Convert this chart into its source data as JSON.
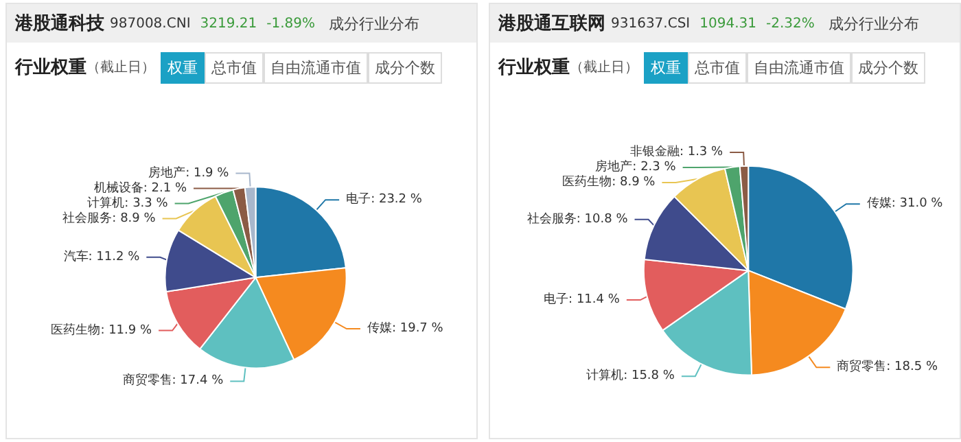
{
  "chart_data": [
    {
      "type": "pie",
      "title": "港股通科技",
      "subtitle": "987008.CNI",
      "annotations": [
        "3219.21",
        "-1.89%",
        "成分行业分布",
        "行业权重",
        "（截止日）",
        "权重",
        "总市值",
        "自由流通市值",
        "成分个数"
      ],
      "categories": [
        "电子",
        "传媒",
        "商贸零售",
        "医药生物",
        "汽车",
        "社会服务",
        "计算机",
        "机械设备",
        "房地产"
      ],
      "values": [
        23.2,
        19.7,
        17.4,
        11.9,
        11.2,
        8.9,
        3.3,
        2.1,
        1.9
      ],
      "value_labels": [
        "23.2 %",
        "19.7 %",
        "17.4 %",
        "11.9 %",
        "11.2 %",
        "8.9 %",
        "3.3 %",
        "2.1 %",
        "1.9 %"
      ],
      "colors": [
        "#1f77a8",
        "#f58a1f",
        "#5ec0c0",
        "#e25d5d",
        "#3f4b8c",
        "#e8c552",
        "#4ea46c",
        "#8b5b45",
        "#a8b7cc"
      ]
    },
    {
      "type": "pie",
      "title": "港股通互联网",
      "subtitle": "931637.CSI",
      "annotations": [
        "1094.31",
        "-2.32%",
        "成分行业分布",
        "行业权重",
        "（截止日）",
        "权重",
        "总市值",
        "自由流通市值",
        "成分个数"
      ],
      "categories": [
        "传媒",
        "商贸零售",
        "计算机",
        "电子",
        "社会服务",
        "医药生物",
        "房地产",
        "非银金融"
      ],
      "values": [
        31.0,
        18.5,
        15.8,
        11.4,
        10.8,
        8.9,
        2.3,
        1.3
      ],
      "value_labels": [
        "31.0 %",
        "18.5 %",
        "15.8 %",
        "11.4 %",
        "10.8 %",
        "8.9 %",
        "2.3 %",
        "1.3 %"
      ],
      "colors": [
        "#1f77a8",
        "#f58a1f",
        "#5ec0c0",
        "#e25d5d",
        "#3f4b8c",
        "#e8c552",
        "#4ea46c",
        "#8b5b45"
      ]
    }
  ]
}
